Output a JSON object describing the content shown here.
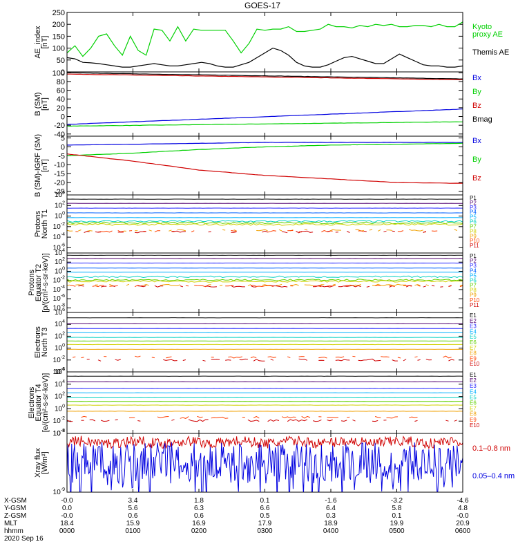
{
  "title": "GOES-17",
  "colors": {
    "black": "#000000",
    "green": "#00d000",
    "red": "#d00000",
    "blue": "#0000e0",
    "p_colors": [
      "#000000",
      "#500070",
      "#2020ff",
      "#0060ff",
      "#00b0ff",
      "#00d0c0",
      "#60d000",
      "#d0d000",
      "#f0a000",
      "#ff4000",
      "#d00000"
    ],
    "e_colors": [
      "#000000",
      "#500070",
      "#2020ff",
      "#00b0ff",
      "#00d0c0",
      "#60d000",
      "#d0d000",
      "#f0a000",
      "#ff4000",
      "#d00000"
    ]
  },
  "footer": {
    "row_labels": [
      "X-GSM",
      "Y-GSM",
      "Z-GSM",
      "MLT",
      "hhmm"
    ],
    "date": "2020 Sep 16",
    "rows": [
      [
        "-0.0",
        "3.4",
        "1.8",
        "0.1",
        "-1.6",
        "-3.2",
        "-4.6"
      ],
      [
        "0.0",
        "5.6",
        "6.3",
        "6.6",
        "6.4",
        "5.8",
        "4.8"
      ],
      [
        "-0.0",
        "0.6",
        "0.6",
        "0.5",
        "0.3",
        "0.1",
        "-0.0"
      ],
      [
        "18.4",
        "15.9",
        "16.9",
        "17.9",
        "18.9",
        "19.9",
        "20.9"
      ],
      [
        "0000",
        "0100",
        "0200",
        "0300",
        "0400",
        "0500",
        "0600"
      ]
    ]
  },
  "chart_data": [
    {
      "type": "line",
      "ylabel": [
        "AE_index",
        "[nT]"
      ],
      "ylim": [
        0,
        250
      ],
      "yticks": [
        "0",
        "50",
        "100",
        "150",
        "200",
        "250"
      ],
      "x": "time 0000-0600 UT",
      "series": [
        {
          "name": "Kyoto proxy AE",
          "legend": [
            "Kyoto",
            "proxy AE"
          ],
          "color": "green",
          "values": [
            80,
            110,
            65,
            100,
            150,
            160,
            110,
            70,
            150,
            90,
            70,
            180,
            175,
            130,
            190,
            130,
            180,
            175,
            175,
            175,
            175,
            130,
            80,
            120,
            180,
            175,
            180,
            180,
            190,
            170,
            170,
            175,
            180,
            200,
            190,
            190,
            185,
            195,
            190,
            200,
            195,
            200,
            190,
            190,
            195,
            195,
            190,
            200,
            190,
            190,
            210
          ]
        },
        {
          "name": "Themis AE",
          "legend": [
            "Themis AE"
          ],
          "color": "black",
          "values": [
            60,
            55,
            40,
            38,
            35,
            30,
            25,
            20,
            20,
            25,
            30,
            35,
            30,
            25,
            25,
            30,
            35,
            40,
            35,
            25,
            20,
            20,
            30,
            40,
            60,
            80,
            100,
            90,
            70,
            40,
            25,
            20,
            20,
            30,
            45,
            60,
            65,
            55,
            45,
            35,
            35,
            55,
            75,
            60,
            45,
            30,
            25,
            25,
            20,
            20,
            25
          ]
        }
      ]
    },
    {
      "type": "line",
      "ylabel": [
        "B (SM)",
        "[nT]"
      ],
      "ylim": [
        -45,
        102
      ],
      "yticks": [
        "-40",
        "-20",
        "0",
        "20",
        "40",
        "60",
        "80",
        "100"
      ],
      "series": [
        {
          "name": "Bx",
          "legend": [
            "Bx"
          ],
          "color": "blue",
          "values": [
            -18,
            17
          ]
        },
        {
          "name": "By",
          "legend": [
            "By"
          ],
          "color": "green",
          "values": [
            -22,
            -12
          ]
        },
        {
          "name": "Bz",
          "legend": [
            "Bz"
          ],
          "color": "red",
          "values": [
            97,
            84
          ]
        },
        {
          "name": "Bmag",
          "legend": [
            "Bmag"
          ],
          "color": "black",
          "values": [
            100,
            86
          ]
        }
      ]
    },
    {
      "type": "line",
      "ylabel": [
        "B (SM)-IGRF (SM)",
        "[nT]"
      ],
      "ylim": [
        -27,
        6
      ],
      "yticks": [
        "-25",
        "-20",
        "-15",
        "-10",
        "-5",
        "0",
        "5"
      ],
      "series": [
        {
          "name": "Bx",
          "legend": [
            "Bx"
          ],
          "color": "blue",
          "values": [
            1,
            1.5,
            2,
            2.5,
            2.5,
            2.5,
            2.5
          ]
        },
        {
          "name": "By",
          "legend": [
            "By"
          ],
          "color": "green",
          "values": [
            -5,
            -3.5,
            -1.5,
            0,
            1,
            1.5,
            2
          ]
        },
        {
          "name": "Bz",
          "legend": [
            "Bz"
          ],
          "color": "red",
          "values": [
            -4,
            -8,
            -13,
            -16,
            -18,
            -20,
            -20.5
          ]
        }
      ]
    },
    {
      "type": "line",
      "log": true,
      "ylabel": [
        "Protons",
        "North T1"
      ],
      "ylim_exp": [
        -7,
        4
      ],
      "yticks_exp": [
        4,
        2,
        0,
        -2,
        -4,
        -6
      ],
      "series_names": [
        "P1",
        "P2",
        "P3",
        "P4",
        "P5",
        "P6",
        "P7",
        "P8",
        "P9",
        "P10",
        "P11"
      ],
      "levels_exp": [
        3.2,
        2.4,
        1.5,
        0.6,
        -0.3,
        -1.0,
        -1.3,
        -1.6,
        -2.7,
        -2.9,
        -3.0
      ]
    },
    {
      "type": "line",
      "log": true,
      "ylabel": [
        "Protons",
        "Equator T2",
        "[p/(cm²-s-sr-keV)]"
      ],
      "ylim_exp": [
        -9,
        4
      ],
      "yticks_exp": [
        4,
        2,
        0,
        -2,
        -4,
        -6,
        -8
      ],
      "series_names": [
        "P1",
        "P2",
        "P3",
        "P4",
        "P5",
        "P6",
        "P7",
        "P8",
        "P9",
        "P10",
        "P11"
      ],
      "levels_exp": [
        3.5,
        2.8,
        1.8,
        0.7,
        -0.2,
        -1.2,
        -1.9,
        -2.2,
        -3.0,
        -3.2,
        -3.3
      ]
    },
    {
      "type": "line",
      "log": true,
      "ylabel": [
        "Electrons",
        "North T3"
      ],
      "ylim_exp": [
        -4,
        6
      ],
      "yticks_exp": [
        6,
        4,
        2,
        0,
        -2,
        -4
      ],
      "series_names": [
        "E1",
        "E2",
        "E3",
        "E4",
        "E5",
        "E6",
        "E7",
        "E8",
        "E9",
        "E10"
      ],
      "levels_exp": [
        5.1,
        4.1,
        3.3,
        2.6,
        1.8,
        1.2,
        0.6,
        -0.2,
        -1.5,
        -2.0
      ]
    },
    {
      "type": "line",
      "log": true,
      "ylabel": [
        "Electrons",
        "Equator T4",
        "[e/(cm²-s-sr-keV)]"
      ],
      "ylim_exp": [
        -4,
        6
      ],
      "yticks_exp": [
        6,
        4,
        2,
        0,
        -2,
        -4
      ],
      "series_names": [
        "E1",
        "E2",
        "E3",
        "E4",
        "E5",
        "E6",
        "E7",
        "E8",
        "E9",
        "E10"
      ],
      "levels_exp": [
        5.3,
        4.4,
        3.3,
        2.6,
        1.8,
        1.2,
        0.6,
        -0.4,
        -1.4,
        -1.9
      ]
    },
    {
      "type": "line",
      "log": true,
      "ylabel": [
        "Xray flux",
        "[W/m²]"
      ],
      "ylim_exp": [
        -9,
        -8
      ],
      "yticks_exp": [
        -8,
        -9
      ],
      "series": [
        {
          "name": "0.1-0.8 nm",
          "legend": [
            "0.1–0.8 nm"
          ],
          "color": "red",
          "level_exp": -8.15
        },
        {
          "name": "0.05-0.4 nm",
          "legend": [
            "0.05–0.4 nm"
          ],
          "color": "blue",
          "level_exp": -8.5
        }
      ]
    }
  ]
}
